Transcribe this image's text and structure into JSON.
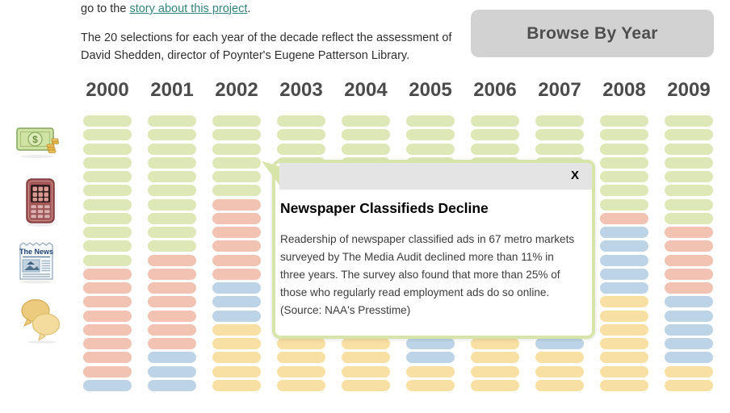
{
  "header": {
    "intro_prefix": "go to the ",
    "intro_link": "story about this project",
    "intro_suffix": ".",
    "description": "The 20 selections for each year of the decade reflect the assessment of David Shedden, director of Poynter's Eugene Patterson Library.",
    "browse_button_label": "Browse By Year"
  },
  "sidebar": {
    "icons": [
      "money-icon",
      "mobile-phone-icon",
      "newspaper-icon",
      "chat-bubbles-icon"
    ],
    "news_icon_label": "The News"
  },
  "grid": {
    "rows_per_year": 20,
    "palette": {
      "g": "#dde8b6",
      "r": "#f2c3b3",
      "b": "#bdd4e7",
      "y": "#f8e0a4"
    },
    "palette_names": {
      "g": "green",
      "r": "salmon",
      "b": "blue",
      "y": "yellow"
    },
    "columns": [
      {
        "year": "2000",
        "cells": "gggggggggggrrrrrrrrb"
      },
      {
        "year": "2001",
        "cells": "ggggggggggrrrrrrrbbb"
      },
      {
        "year": "2002",
        "cells": "ggggggrrrrrrbbbyyyyy"
      },
      {
        "year": "2003",
        "cells": "ggggggrrrrrrbbbbyyyy"
      },
      {
        "year": "2004",
        "cells": "ggggggrrrrrrrbbbyyyy"
      },
      {
        "year": "2005",
        "cells": "ggggggrrrrrrbbbbbbyy"
      },
      {
        "year": "2006",
        "cells": "gggggggrrrrrrbbbyyyy"
      },
      {
        "year": "2007",
        "cells": "gggggggrrrrrbbbbbyyy"
      },
      {
        "year": "2008",
        "cells": "gggggggrbbbbbyyyyyyy"
      },
      {
        "year": "2009",
        "cells": "ggggggggrrrrrbbbbbyy"
      }
    ]
  },
  "popup": {
    "close_label": "X",
    "title": "Newspaper Classifieds Decline",
    "body": "Readership of newspaper classified ads in 67 metro markets surveyed by The Media Audit declined more than 11% in three years. The survey also found that more than 25% of those who regularly read employment ads do so online. (Source: NAA's Presstime)",
    "anchor_year": "2002",
    "border_color": "#d7e5ab",
    "header_bar_color": "#e4e4e4"
  },
  "colors": {
    "link": "#35837a",
    "button_bg": "#d2d2d2",
    "button_text": "#4e4e4e",
    "year_header_text": "#4b4b4b",
    "body_text": "#2f2f2f"
  }
}
